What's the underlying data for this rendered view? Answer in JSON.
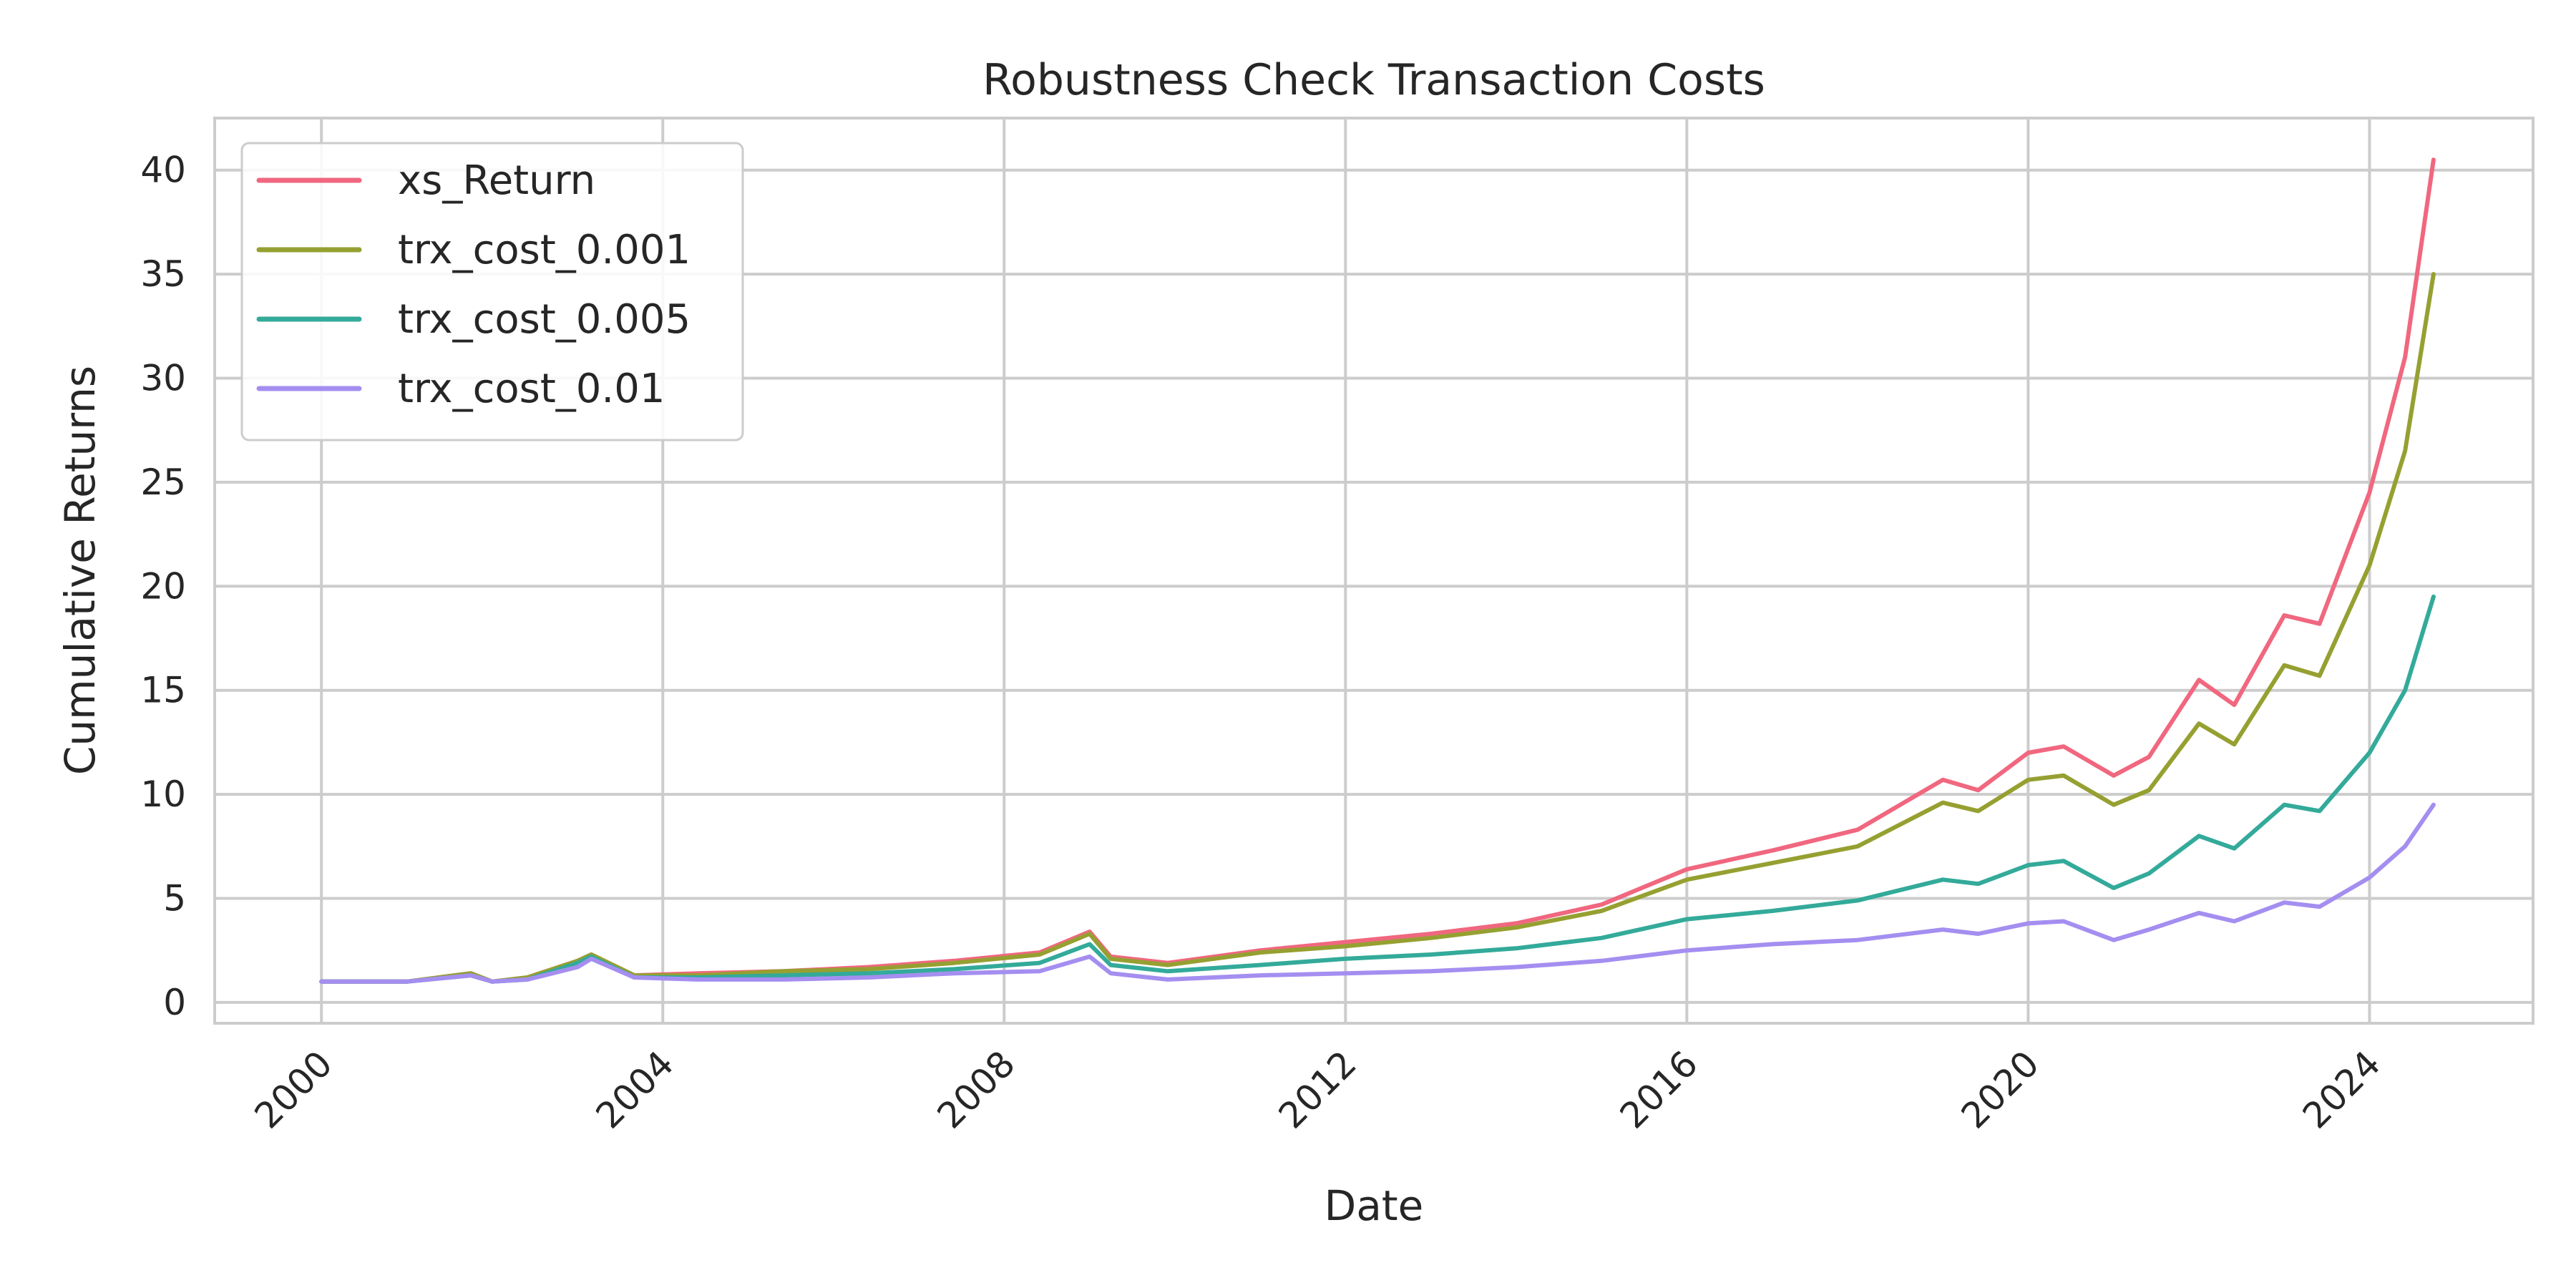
{
  "chart_data": {
    "type": "line",
    "title": "Robustness Check Transaction Costs",
    "xlabel": "Date",
    "ylabel": "Cumulative Returns",
    "xlim": [
      "1998-10-01",
      "2025-12-01"
    ],
    "ylim": [
      -1,
      42.5
    ],
    "x_ticks": [
      "2000",
      "2004",
      "2008",
      "2012",
      "2016",
      "2020",
      "2024"
    ],
    "y_ticks": [
      0,
      5,
      10,
      15,
      20,
      25,
      30,
      35,
      40
    ],
    "grid": true,
    "legend_position": "top-left",
    "x": [
      "2000-01",
      "2001-01",
      "2001-10",
      "2002-01",
      "2002-06",
      "2003-01",
      "2003-03",
      "2003-09",
      "2004-06",
      "2005-06",
      "2006-06",
      "2007-06",
      "2008-06",
      "2009-01",
      "2009-04",
      "2009-12",
      "2011-01",
      "2012-01",
      "2013-01",
      "2014-01",
      "2015-01",
      "2016-01",
      "2017-01",
      "2018-01",
      "2019-01",
      "2019-06",
      "2020-01",
      "2020-06",
      "2021-01",
      "2021-06",
      "2022-01",
      "2022-06",
      "2023-01",
      "2023-06",
      "2024-01",
      "2024-06",
      "2024-10"
    ],
    "series": [
      {
        "name": "xs_Return",
        "color": "#f0677f",
        "values": [
          1.0,
          1.0,
          1.4,
          1.0,
          1.2,
          2.0,
          2.3,
          1.3,
          1.4,
          1.5,
          1.7,
          2.0,
          2.4,
          3.4,
          2.2,
          1.9,
          2.5,
          2.9,
          3.3,
          3.8,
          4.7,
          6.4,
          7.3,
          8.3,
          10.7,
          10.2,
          12.0,
          12.3,
          10.9,
          11.8,
          15.5,
          14.3,
          18.6,
          18.2,
          24.5,
          31.0,
          40.5
        ]
      },
      {
        "name": "trx_cost_0.001",
        "color": "#96a031",
        "values": [
          1.0,
          1.0,
          1.4,
          1.0,
          1.2,
          2.0,
          2.3,
          1.3,
          1.3,
          1.5,
          1.6,
          1.9,
          2.3,
          3.3,
          2.1,
          1.8,
          2.4,
          2.7,
          3.1,
          3.6,
          4.4,
          5.9,
          6.7,
          7.5,
          9.6,
          9.2,
          10.7,
          10.9,
          9.5,
          10.2,
          13.4,
          12.4,
          16.2,
          15.7,
          21.0,
          26.5,
          35.0
        ]
      },
      {
        "name": "trx_cost_0.005",
        "color": "#33aa9a",
        "values": [
          1.0,
          1.0,
          1.3,
          1.0,
          1.1,
          1.9,
          2.2,
          1.2,
          1.2,
          1.3,
          1.4,
          1.6,
          1.9,
          2.8,
          1.8,
          1.5,
          1.8,
          2.1,
          2.3,
          2.6,
          3.1,
          4.0,
          4.4,
          4.9,
          5.9,
          5.7,
          6.6,
          6.8,
          5.5,
          6.2,
          8.0,
          7.4,
          9.5,
          9.2,
          12.0,
          15.0,
          19.5
        ]
      },
      {
        "name": "trx_cost_0.01",
        "color": "#a48ef0",
        "values": [
          1.0,
          1.0,
          1.3,
          1.0,
          1.1,
          1.7,
          2.1,
          1.2,
          1.1,
          1.1,
          1.2,
          1.4,
          1.5,
          2.2,
          1.4,
          1.1,
          1.3,
          1.4,
          1.5,
          1.7,
          2.0,
          2.5,
          2.8,
          3.0,
          3.5,
          3.3,
          3.8,
          3.9,
          3.0,
          3.5,
          4.3,
          3.9,
          4.8,
          4.6,
          6.0,
          7.5,
          9.5
        ]
      }
    ]
  }
}
